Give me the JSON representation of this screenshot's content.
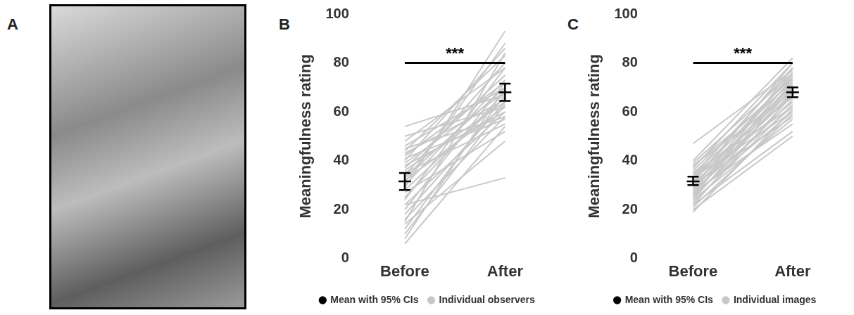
{
  "image_panel": {
    "panel_label": "A"
  },
  "chart_data": [
    {
      "panel_label": "B",
      "type": "line",
      "categories": [
        "Before",
        "After"
      ],
      "y_label": "Meaningfulness rating",
      "ylim": [
        0,
        100
      ],
      "yticks": [
        0,
        20,
        40,
        60,
        80,
        100
      ],
      "grid": false,
      "legend": "bottom",
      "annotation": {
        "text": "***",
        "y": 80
      },
      "series": [
        {
          "name": "Mean with 95% CIs",
          "color": "#000000",
          "values": [
            31.5,
            68
          ],
          "ci_low": [
            28,
            64.5
          ],
          "ci_high": [
            35,
            71.5
          ]
        },
        {
          "name": "Individual observers",
          "color": "#c8c8c8",
          "lines": [
            [
              54,
              67
            ],
            [
              50,
              62
            ],
            [
              48,
              78
            ],
            [
              46,
              70
            ],
            [
              45,
              58
            ],
            [
              44,
              83
            ],
            [
              43,
              65
            ],
            [
              42,
              72
            ],
            [
              41,
              57
            ],
            [
              40,
              86
            ],
            [
              39,
              68
            ],
            [
              38,
              60
            ],
            [
              37,
              75
            ],
            [
              36,
              64
            ],
            [
              35,
              55
            ],
            [
              34,
              80
            ],
            [
              33,
              70
            ],
            [
              32,
              62
            ],
            [
              31,
              88
            ],
            [
              30,
              73
            ],
            [
              28,
              66
            ],
            [
              27,
              52
            ],
            [
              25,
              68
            ],
            [
              24,
              78
            ],
            [
              22,
              60
            ],
            [
              20,
              72
            ],
            [
              18,
              64
            ],
            [
              16,
              58
            ],
            [
              14,
              48
            ],
            [
              12,
              67
            ],
            [
              10,
              63
            ],
            [
              8,
              70
            ],
            [
              6,
              54
            ],
            [
              22,
              33
            ],
            [
              29,
              93
            ],
            [
              15,
              84
            ]
          ]
        }
      ]
    },
    {
      "panel_label": "C",
      "type": "line",
      "categories": [
        "Before",
        "After"
      ],
      "y_label": "Meaningfulness rating",
      "ylim": [
        0,
        100
      ],
      "yticks": [
        0,
        20,
        40,
        60,
        80,
        100
      ],
      "grid": false,
      "legend": "bottom",
      "annotation": {
        "text": "***",
        "y": 80
      },
      "series": [
        {
          "name": "Mean with 95% CIs",
          "color": "#000000",
          "values": [
            31.5,
            68
          ],
          "ci_low": [
            30,
            66
          ],
          "ci_high": [
            33.5,
            70
          ]
        },
        {
          "name": "Individual images",
          "color": "#c8c8c8",
          "lines": [
            [
              47,
              77
            ],
            [
              40,
              82
            ],
            [
              39,
              76
            ],
            [
              38,
              72
            ],
            [
              38,
              68
            ],
            [
              37,
              80
            ],
            [
              36,
              74
            ],
            [
              35,
              70
            ],
            [
              35,
              62
            ],
            [
              34,
              78
            ],
            [
              34,
              66
            ],
            [
              33,
              73
            ],
            [
              33,
              60
            ],
            [
              32,
              75
            ],
            [
              32,
              69
            ],
            [
              31,
              64
            ],
            [
              31,
              80
            ],
            [
              30,
              71
            ],
            [
              30,
              58
            ],
            [
              29,
              67
            ],
            [
              29,
              76
            ],
            [
              28,
              62
            ],
            [
              28,
              72
            ],
            [
              27,
              55
            ],
            [
              27,
              68
            ],
            [
              26,
              74
            ],
            [
              26,
              60
            ],
            [
              25,
              65
            ],
            [
              25,
              78
            ],
            [
              24,
              57
            ],
            [
              24,
              70
            ],
            [
              23,
              63
            ],
            [
              22,
              52
            ],
            [
              22,
              67
            ],
            [
              21,
              59
            ],
            [
              20,
              50
            ],
            [
              19,
              61
            ],
            [
              26,
              71
            ]
          ]
        }
      ]
    }
  ]
}
